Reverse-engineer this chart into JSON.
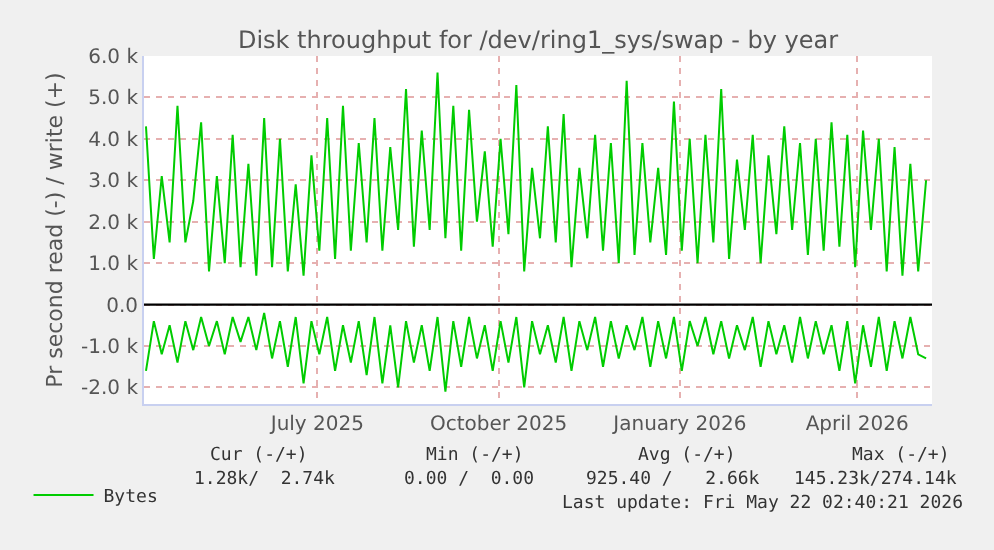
{
  "chart_data": {
    "type": "line",
    "title": "Disk throughput for /dev/ring1_sys/swap - by year",
    "ylabel": "Pr second read (-) / write (+)",
    "x": [
      "2025-04-05",
      "2025-04-09",
      "2025-04-13",
      "2025-04-17",
      "2025-04-21",
      "2025-04-25",
      "2025-04-29",
      "2025-05-03",
      "2025-05-07",
      "2025-05-11",
      "2025-05-15",
      "2025-05-19",
      "2025-05-23",
      "2025-05-27",
      "2025-05-31",
      "2025-06-04",
      "2025-06-08",
      "2025-06-12",
      "2025-06-16",
      "2025-06-20",
      "2025-06-24",
      "2025-06-28",
      "2025-07-02",
      "2025-07-06",
      "2025-07-10",
      "2025-07-14",
      "2025-07-18",
      "2025-07-22",
      "2025-07-26",
      "2025-07-30",
      "2025-08-03",
      "2025-08-07",
      "2025-08-11",
      "2025-08-15",
      "2025-08-19",
      "2025-08-23",
      "2025-08-27",
      "2025-08-31",
      "2025-09-04",
      "2025-09-08",
      "2025-09-12",
      "2025-09-16",
      "2025-09-20",
      "2025-09-24",
      "2025-09-28",
      "2025-10-02",
      "2025-10-06",
      "2025-10-10",
      "2025-10-14",
      "2025-10-18",
      "2025-10-22",
      "2025-10-26",
      "2025-10-30",
      "2025-11-03",
      "2025-11-07",
      "2025-11-11",
      "2025-11-15",
      "2025-11-19",
      "2025-11-23",
      "2025-11-27",
      "2025-12-01",
      "2025-12-05",
      "2025-12-09",
      "2025-12-13",
      "2025-12-17",
      "2025-12-21",
      "2025-12-25",
      "2025-12-29",
      "2026-01-02",
      "2026-01-06",
      "2026-01-10",
      "2026-01-14",
      "2026-01-18",
      "2026-01-22",
      "2026-01-26",
      "2026-01-30",
      "2026-02-03",
      "2026-02-07",
      "2026-02-11",
      "2026-02-15",
      "2026-02-19",
      "2026-02-23",
      "2026-02-27",
      "2026-03-03",
      "2026-03-07",
      "2026-03-11",
      "2026-03-15",
      "2026-03-19",
      "2026-03-23",
      "2026-03-27",
      "2026-03-31",
      "2026-04-04",
      "2026-04-08",
      "2026-04-12",
      "2026-04-16",
      "2026-04-20",
      "2026-04-24",
      "2026-04-28",
      "2026-05-02",
      "2026-05-06"
    ],
    "series": [
      {
        "name": "Bytes",
        "color": "#00cc00",
        "values": [
          4300,
          1100,
          3100,
          1500,
          4800,
          1500,
          2500,
          4400,
          800,
          3100,
          1000,
          4100,
          900,
          3400,
          700,
          4500,
          900,
          4000,
          800,
          2900,
          700,
          3600,
          1300,
          4500,
          1100,
          4800,
          1300,
          3900,
          1500,
          4500,
          1300,
          3800,
          1800,
          5200,
          1400,
          4200,
          1800,
          5600,
          1600,
          4800,
          1300,
          4700,
          2000,
          3700,
          1400,
          4000,
          1700,
          5300,
          800,
          3300,
          1600,
          4300,
          1500,
          4600,
          900,
          3300,
          1600,
          4100,
          1300,
          3900,
          1000,
          5400,
          1200,
          3900,
          1500,
          3300,
          1200,
          4900,
          1300,
          4000,
          1000,
          4100,
          1500,
          5200,
          1100,
          3500,
          1800,
          4100,
          1000,
          3600,
          1700,
          4300,
          1800,
          3900,
          1200,
          4000,
          1300,
          4400,
          1400,
          4100,
          900,
          4200,
          1800,
          4000,
          800,
          3800,
          700,
          3400,
          800,
          3000
        ]
      },
      {
        "color": "#00cc00",
        "values": [
          -1600,
          -400,
          -1200,
          -500,
          -1400,
          -400,
          -1100,
          -300,
          -1000,
          -400,
          -1200,
          -300,
          -900,
          -300,
          -1100,
          -200,
          -1300,
          -400,
          -1500,
          -300,
          -1900,
          -400,
          -1200,
          -300,
          -1600,
          -500,
          -1400,
          -400,
          -1700,
          -300,
          -1900,
          -500,
          -2000,
          -400,
          -1400,
          -500,
          -1600,
          -300,
          -2100,
          -400,
          -1500,
          -300,
          -1300,
          -500,
          -1600,
          -400,
          -1400,
          -300,
          -2000,
          -400,
          -1200,
          -500,
          -1400,
          -300,
          -1600,
          -400,
          -1100,
          -300,
          -1500,
          -400,
          -1300,
          -500,
          -1100,
          -300,
          -1500,
          -400,
          -1300,
          -300,
          -1600,
          -400,
          -1000,
          -300,
          -1200,
          -400,
          -1300,
          -500,
          -1100,
          -300,
          -1500,
          -400,
          -1200,
          -500,
          -1400,
          -300,
          -1300,
          -400,
          -1200,
          -500,
          -1600,
          -400,
          -1900,
          -500,
          -1500,
          -300,
          -1600,
          -400,
          -1300,
          -300,
          -1200,
          -1300
        ]
      }
    ],
    "xlim": [
      "2025-04-04",
      "2026-05-09"
    ],
    "xticks": [
      {
        "value": "2025-07-01",
        "label": "July 2025"
      },
      {
        "value": "2025-10-01",
        "label": "October 2025"
      },
      {
        "value": "2026-01-01",
        "label": "January 2026"
      },
      {
        "value": "2026-04-01",
        "label": "April 2026"
      }
    ],
    "ylim": [
      -2400,
      6000
    ],
    "yticks": [
      {
        "value": -2000,
        "label": "-2.0 k"
      },
      {
        "value": -1000,
        "label": "-1.0 k"
      },
      {
        "value": 0,
        "label": "0.0"
      },
      {
        "value": 1000,
        "label": "1.0 k"
      },
      {
        "value": 2000,
        "label": "2.0 k"
      },
      {
        "value": 3000,
        "label": "3.0 k"
      },
      {
        "value": 4000,
        "label": "4.0 k"
      },
      {
        "value": 5000,
        "label": "5.0 k"
      },
      {
        "value": 6000,
        "label": "6.0 k"
      }
    ],
    "ref_lines": [
      {
        "axis": "y",
        "value": 0,
        "color": "#000000"
      }
    ],
    "grid": true,
    "legend": "bottom left",
    "marker": "none",
    "line_style": "solid",
    "annotations": [
      "Cur (-/+)",
      "Min (-/+)",
      "Avg (-/+)",
      "Max (-/+)",
      "1.28k/  2.74k",
      "0.00 /  0.00",
      "925.40 /   2.66k",
      "145.23k/274.14k",
      "Last update: Fri May 22 02:40:21 2026"
    ]
  }
}
